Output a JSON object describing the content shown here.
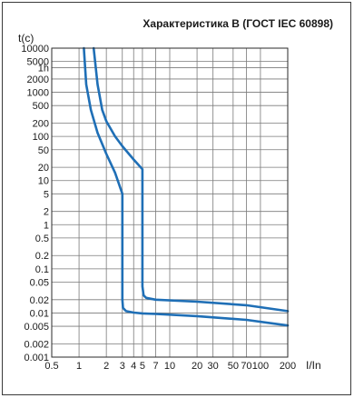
{
  "chart_data": {
    "type": "line",
    "title": "Характеристика B (ГОСТ IEC 60898)",
    "ylabel": "t(c)",
    "xlabel": "I/In",
    "x_scale": "log",
    "y_scale": "log",
    "xlim": [
      0.5,
      200
    ],
    "ylim": [
      0.001,
      10000
    ],
    "grid": true,
    "x_ticks": [
      {
        "value": 0.5,
        "label": "0.5"
      },
      {
        "value": 1,
        "label": "1"
      },
      {
        "value": 2,
        "label": "2"
      },
      {
        "value": 3,
        "label": "3"
      },
      {
        "value": 4,
        "label": "4"
      },
      {
        "value": 5,
        "label": "5"
      },
      {
        "value": 7,
        "label": "7"
      },
      {
        "value": 10,
        "label": "10"
      },
      {
        "value": 20,
        "label": "20"
      },
      {
        "value": 30,
        "label": "30"
      },
      {
        "value": 50,
        "label": "50"
      },
      {
        "value": 70,
        "label": "70"
      },
      {
        "value": 100,
        "label": "100"
      },
      {
        "value": 200,
        "label": "200"
      }
    ],
    "y_ticks": [
      {
        "value": 10000,
        "label": "10000"
      },
      {
        "value": 5000,
        "label": "5000"
      },
      {
        "value": 3600,
        "label": "1h"
      },
      {
        "value": 2000,
        "label": "2000"
      },
      {
        "value": 1000,
        "label": "1000"
      },
      {
        "value": 500,
        "label": "500"
      },
      {
        "value": 200,
        "label": "200"
      },
      {
        "value": 100,
        "label": "100"
      },
      {
        "value": 50,
        "label": "50"
      },
      {
        "value": 20,
        "label": "20"
      },
      {
        "value": 10,
        "label": "10"
      },
      {
        "value": 5,
        "label": "5"
      },
      {
        "value": 2,
        "label": "2"
      },
      {
        "value": 1,
        "label": "1"
      },
      {
        "value": 0.5,
        "label": "0.5"
      },
      {
        "value": 0.2,
        "label": "0.2"
      },
      {
        "value": 0.1,
        "label": "0.1"
      },
      {
        "value": 0.05,
        "label": "0.05"
      },
      {
        "value": 0.02,
        "label": "0.02"
      },
      {
        "value": 0.01,
        "label": "0.01"
      },
      {
        "value": 0.005,
        "label": "0.005"
      },
      {
        "value": 0.002,
        "label": "0.002"
      },
      {
        "value": 0.001,
        "label": "0.001"
      }
    ],
    "series": [
      {
        "x": [
          1.13,
          1.2,
          1.35,
          1.6,
          2.0,
          2.5,
          3.0,
          3.0,
          3.05,
          3.3,
          4.0,
          5.0,
          7.0,
          20,
          70,
          200
        ],
        "y": [
          10000,
          1500,
          400,
          120,
          40,
          15,
          5,
          0.02,
          0.013,
          0.011,
          0.0102,
          0.0098,
          0.0095,
          0.0085,
          0.007,
          0.0052
        ]
      },
      {
        "x": [
          1.45,
          1.6,
          1.8,
          2.0,
          2.5,
          3.0,
          4.0,
          5.0,
          5.0,
          5.15,
          5.5,
          7.0,
          20,
          70,
          200
        ],
        "y": [
          10000,
          1500,
          400,
          220,
          100,
          60,
          30,
          18,
          0.04,
          0.025,
          0.022,
          0.02,
          0.018,
          0.015,
          0.011
        ]
      }
    ],
    "line_color": "#1f6fb6",
    "grid_color": "#7a7a7a"
  }
}
